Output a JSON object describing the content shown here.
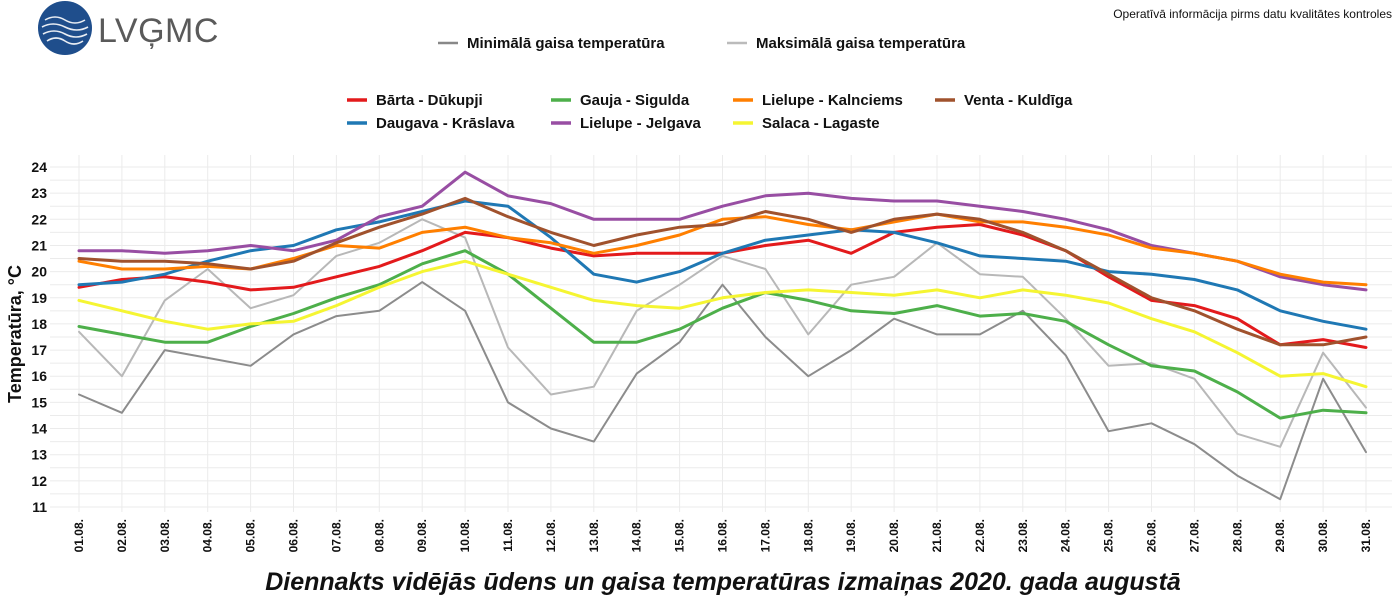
{
  "brand": {
    "logo_text": "LVĢMC",
    "logo_color": "#1f4e8c"
  },
  "note": "Operatīvā informācija pirms datu kvalitātes kontroles",
  "chart_data": {
    "type": "line",
    "title": "Diennakts vidējās ūdens un gaisa temperatūras izmaiņas 2020. gada augustā",
    "ylabel": "Temperatūra, °C",
    "xlabel": "",
    "ylim": [
      11,
      24
    ],
    "yticks": [
      11,
      12,
      13,
      14,
      15,
      16,
      17,
      18,
      19,
      20,
      21,
      22,
      23,
      24
    ],
    "grid": true,
    "categories": [
      "01.08.",
      "02.08.",
      "03.08.",
      "04.08.",
      "05.08.",
      "06.08.",
      "07.08.",
      "08.08.",
      "09.08.",
      "10.08.",
      "11.08.",
      "12.08.",
      "13.08.",
      "14.08.",
      "15.08.",
      "16.08.",
      "17.08.",
      "18.08.",
      "19.08.",
      "20.08.",
      "21.08.",
      "22.08.",
      "23.08.",
      "24.08.",
      "25.08.",
      "26.08.",
      "27.08.",
      "28.08.",
      "29.08.",
      "30.08.",
      "31.08."
    ],
    "air_legend": [
      {
        "name": "Minimālā gaisa temperatūra",
        "color": "#888888"
      },
      {
        "name": "Maksimālā gaisa temperatūra",
        "color": "#bbbbbb"
      }
    ],
    "series": [
      {
        "name": "Minimālā gaisa temperatūra",
        "color": "#8c8c8c",
        "width": 2,
        "values": [
          15.3,
          14.6,
          17.0,
          16.7,
          16.4,
          17.6,
          18.3,
          18.5,
          19.6,
          18.5,
          15.0,
          14.0,
          13.5,
          16.1,
          17.3,
          19.5,
          17.5,
          16.0,
          17.0,
          18.2,
          17.6,
          17.6,
          18.5,
          16.8,
          13.9,
          14.2,
          13.4,
          12.2,
          11.3,
          15.9,
          13.1
        ]
      },
      {
        "name": "Maksimālā gaisa temperatūra",
        "color": "#b8b8b8",
        "width": 2,
        "values": [
          17.7,
          16.0,
          18.9,
          20.1,
          18.6,
          19.1,
          20.6,
          21.1,
          22.0,
          21.3,
          17.1,
          15.3,
          15.6,
          18.5,
          19.5,
          20.6,
          20.1,
          17.6,
          19.5,
          19.8,
          21.1,
          19.9,
          19.8,
          18.2,
          16.4,
          16.5,
          15.9,
          13.8,
          13.3,
          16.9,
          14.8
        ]
      },
      {
        "name": "Bārta - Dūkupji",
        "color": "#e31a1c",
        "width": 3,
        "values": [
          19.4,
          19.7,
          19.8,
          19.6,
          19.3,
          19.4,
          19.8,
          20.2,
          20.8,
          21.5,
          21.3,
          20.9,
          20.6,
          20.7,
          20.7,
          20.7,
          21.0,
          21.2,
          20.7,
          21.5,
          21.7,
          21.8,
          21.4,
          20.8,
          19.8,
          18.9,
          18.7,
          18.2,
          17.2,
          17.4,
          17.1
        ]
      },
      {
        "name": "Daugava - Krāslava",
        "color": "#1f78b4",
        "width": 3,
        "values": [
          19.5,
          19.6,
          19.9,
          20.4,
          20.8,
          21.0,
          21.6,
          21.9,
          22.3,
          22.7,
          22.5,
          21.3,
          19.9,
          19.6,
          20.0,
          20.7,
          21.2,
          21.4,
          21.6,
          21.5,
          21.1,
          20.6,
          20.5,
          20.4,
          20.0,
          19.9,
          19.7,
          19.3,
          18.5,
          18.1,
          17.8
        ]
      },
      {
        "name": "Gauja - Sigulda",
        "color": "#4daf4a",
        "width": 3,
        "values": [
          17.9,
          17.6,
          17.3,
          17.3,
          17.9,
          18.4,
          19.0,
          19.5,
          20.3,
          20.8,
          19.9,
          18.6,
          17.3,
          17.3,
          17.8,
          18.6,
          19.2,
          18.9,
          18.5,
          18.4,
          18.7,
          18.3,
          18.4,
          18.1,
          17.2,
          16.4,
          16.2,
          15.4,
          14.4,
          14.7,
          14.6
        ]
      },
      {
        "name": "Lielupe - Jelgava",
        "color": "#984ea3",
        "width": 3,
        "values": [
          20.8,
          20.8,
          20.7,
          20.8,
          21.0,
          20.8,
          21.2,
          22.1,
          22.5,
          23.8,
          22.9,
          22.6,
          22.0,
          22.0,
          22.0,
          22.5,
          22.9,
          23.0,
          22.8,
          22.7,
          22.7,
          22.5,
          22.3,
          22.0,
          21.6,
          21.0,
          20.7,
          20.4,
          19.8,
          19.5,
          19.3
        ]
      },
      {
        "name": "Lielupe - Kalnciems",
        "color": "#ff7f00",
        "width": 3,
        "values": [
          20.4,
          20.1,
          20.1,
          20.2,
          20.1,
          20.5,
          21.0,
          20.9,
          21.5,
          21.7,
          21.3,
          21.1,
          20.7,
          21.0,
          21.4,
          22.0,
          22.1,
          21.8,
          21.6,
          21.9,
          22.2,
          21.9,
          21.9,
          21.7,
          21.4,
          20.9,
          20.7,
          20.4,
          19.9,
          19.6,
          19.5
        ]
      },
      {
        "name": "Salaca - Lagaste",
        "color": "#f5f532",
        "width": 3,
        "values": [
          18.9,
          18.5,
          18.1,
          17.8,
          18.0,
          18.1,
          18.7,
          19.4,
          20.0,
          20.4,
          19.9,
          19.4,
          18.9,
          18.7,
          18.6,
          19.0,
          19.2,
          19.3,
          19.2,
          19.1,
          19.3,
          19.0,
          19.3,
          19.1,
          18.8,
          18.2,
          17.7,
          16.9,
          16.0,
          16.1,
          15.6
        ]
      },
      {
        "name": "Venta - Kuldīga",
        "color": "#a0522d",
        "width": 3,
        "values": [
          20.5,
          20.4,
          20.4,
          20.3,
          20.1,
          20.4,
          21.1,
          21.7,
          22.2,
          22.8,
          22.1,
          21.5,
          21.0,
          21.4,
          21.7,
          21.8,
          22.3,
          22.0,
          21.5,
          22.0,
          22.2,
          22.0,
          21.5,
          20.8,
          19.9,
          19.0,
          18.5,
          17.8,
          17.2,
          17.2,
          17.5
        ]
      }
    ],
    "water_legend": [
      {
        "name": "Bārta - Dūkupji",
        "color": "#e31a1c"
      },
      {
        "name": "Gauja - Sigulda",
        "color": "#4daf4a"
      },
      {
        "name": "Lielupe - Kalnciems",
        "color": "#ff7f00"
      },
      {
        "name": "Venta - Kuldīga",
        "color": "#a0522d"
      },
      {
        "name": "Daugava - Krāslava",
        "color": "#1f78b4"
      },
      {
        "name": "Lielupe - Jelgava",
        "color": "#984ea3"
      },
      {
        "name": "Salaca - Lagaste",
        "color": "#f5f532"
      }
    ]
  }
}
